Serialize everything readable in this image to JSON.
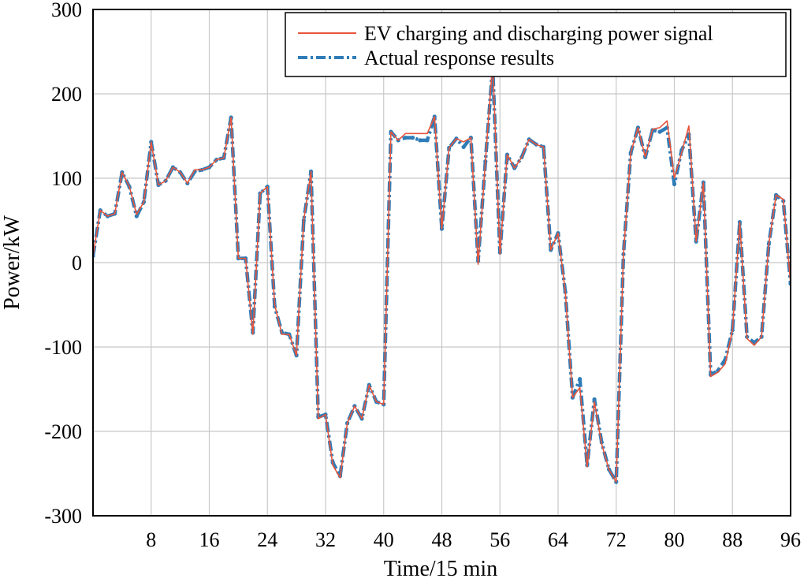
{
  "chart_data": {
    "type": "line",
    "xlabel": "Time/15 min",
    "ylabel": "Power/kW",
    "xlim": [
      0,
      96
    ],
    "ylim": [
      -300,
      300
    ],
    "xticks": [
      8,
      16,
      24,
      32,
      40,
      48,
      56,
      64,
      72,
      80,
      88,
      96
    ],
    "xtick_labels": [
      "8",
      "16",
      "24",
      "32",
      "40",
      "48",
      "56",
      "64",
      "72",
      "80",
      "88",
      "96"
    ],
    "yticks": [
      -300,
      -200,
      -100,
      0,
      100,
      200,
      300
    ],
    "ytick_labels": [
      "-300",
      "-200",
      "-100",
      "0",
      "100",
      "200",
      "300"
    ],
    "grid": true,
    "legend_position": "top-right",
    "x": [
      0,
      1,
      2,
      3,
      4,
      5,
      6,
      7,
      8,
      9,
      10,
      11,
      12,
      13,
      14,
      15,
      16,
      17,
      18,
      19,
      20,
      21,
      22,
      23,
      24,
      25,
      26,
      27,
      28,
      29,
      30,
      31,
      32,
      33,
      34,
      35,
      36,
      37,
      38,
      39,
      40,
      41,
      42,
      43,
      44,
      45,
      46,
      47,
      48,
      49,
      50,
      51,
      52,
      53,
      54,
      55,
      56,
      57,
      58,
      59,
      60,
      61,
      62,
      63,
      64,
      65,
      66,
      67,
      68,
      69,
      70,
      71,
      72,
      73,
      74,
      75,
      76,
      77,
      78,
      79,
      80,
      81,
      82,
      83,
      84,
      85,
      86,
      87,
      88,
      89,
      90,
      91,
      92,
      93,
      94,
      95,
      96
    ],
    "series": [
      {
        "name": "EV charging and discharging power signal",
        "color": "#e8553c",
        "style": "solid",
        "values": [
          8,
          62,
          55,
          58,
          107,
          90,
          57,
          72,
          143,
          92,
          97,
          113,
          107,
          94,
          110,
          110,
          113,
          122,
          124,
          172,
          5,
          5,
          -85,
          82,
          90,
          -50,
          -85,
          -85,
          -110,
          50,
          108,
          -185,
          -180,
          -240,
          -255,
          -190,
          -170,
          -185,
          -145,
          -165,
          -168,
          155,
          145,
          153,
          153,
          153,
          153,
          173,
          40,
          136,
          147,
          143,
          148,
          -2,
          120,
          238,
          10,
          128,
          112,
          125,
          146,
          140,
          137,
          15,
          35,
          -35,
          -160,
          -148,
          -242,
          -165,
          -215,
          -245,
          -260,
          10,
          130,
          160,
          125,
          158,
          160,
          168,
          100,
          130,
          162,
          25,
          95,
          -135,
          -130,
          -120,
          -80,
          48,
          -90,
          -98,
          -88,
          22,
          80,
          75,
          -25
        ]
      },
      {
        "name": "Actual response results",
        "color": "#2e7cb8",
        "style": "dash-dot",
        "values": [
          8,
          62,
          55,
          58,
          107,
          90,
          55,
          72,
          143,
          92,
          97,
          113,
          107,
          94,
          108,
          110,
          113,
          122,
          124,
          172,
          5,
          5,
          -83,
          82,
          90,
          -52,
          -83,
          -85,
          -110,
          50,
          108,
          -183,
          -180,
          -237,
          -253,
          -190,
          -170,
          -185,
          -145,
          -165,
          -168,
          155,
          145,
          148,
          148,
          145,
          145,
          173,
          40,
          136,
          147,
          137,
          148,
          2,
          120,
          232,
          12,
          128,
          112,
          125,
          146,
          140,
          137,
          15,
          35,
          -35,
          -160,
          -138,
          -240,
          -162,
          -213,
          -245,
          -260,
          10,
          130,
          160,
          125,
          157,
          155,
          160,
          93,
          133,
          152,
          25,
          95,
          -133,
          -128,
          -115,
          -80,
          48,
          -88,
          -95,
          -88,
          22,
          80,
          73,
          -25
        ]
      }
    ]
  }
}
